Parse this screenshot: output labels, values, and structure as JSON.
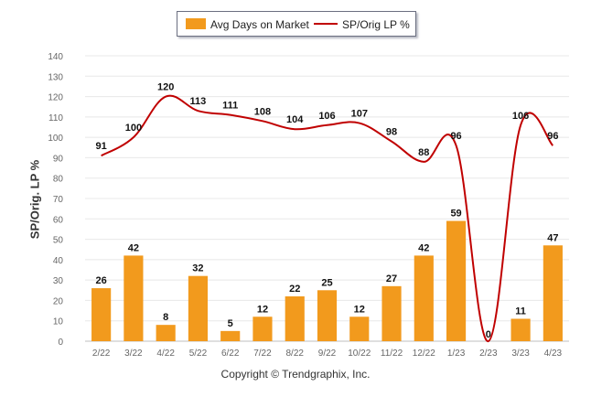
{
  "legend": {
    "bar_label": "Avg Days on Market",
    "line_label": "SP/Orig LP %"
  },
  "copyright": "Copyright © Trendgraphix, Inc.",
  "colors": {
    "bar": "#f29a1d",
    "line": "#c00000",
    "grid": "#e8e8e8",
    "axis_text": "#666666",
    "label_text": "#111111"
  },
  "chart_data": {
    "type": "bar",
    "ylabel": "SP/Orig. LP %",
    "xlabel": "",
    "ylim": [
      0,
      140
    ],
    "yticks": [
      0,
      10,
      20,
      30,
      40,
      50,
      60,
      70,
      80,
      90,
      100,
      110,
      120,
      130,
      140
    ],
    "grid": true,
    "legend_position": "top-center",
    "categories": [
      "2/22",
      "3/22",
      "4/22",
      "5/22",
      "6/22",
      "7/22",
      "8/22",
      "9/22",
      "10/22",
      "11/22",
      "12/22",
      "1/23",
      "2/23",
      "3/23",
      "4/23"
    ],
    "series": [
      {
        "name": "Avg Days on Market",
        "type": "bar",
        "values": [
          26,
          42,
          8,
          32,
          5,
          12,
          22,
          25,
          12,
          27,
          42,
          59,
          0,
          11,
          47
        ]
      },
      {
        "name": "SP/Orig LP %",
        "type": "line",
        "values": [
          91,
          100,
          120,
          113,
          111,
          108,
          104,
          106,
          107,
          98,
          88,
          96,
          0,
          106,
          96
        ]
      }
    ]
  }
}
